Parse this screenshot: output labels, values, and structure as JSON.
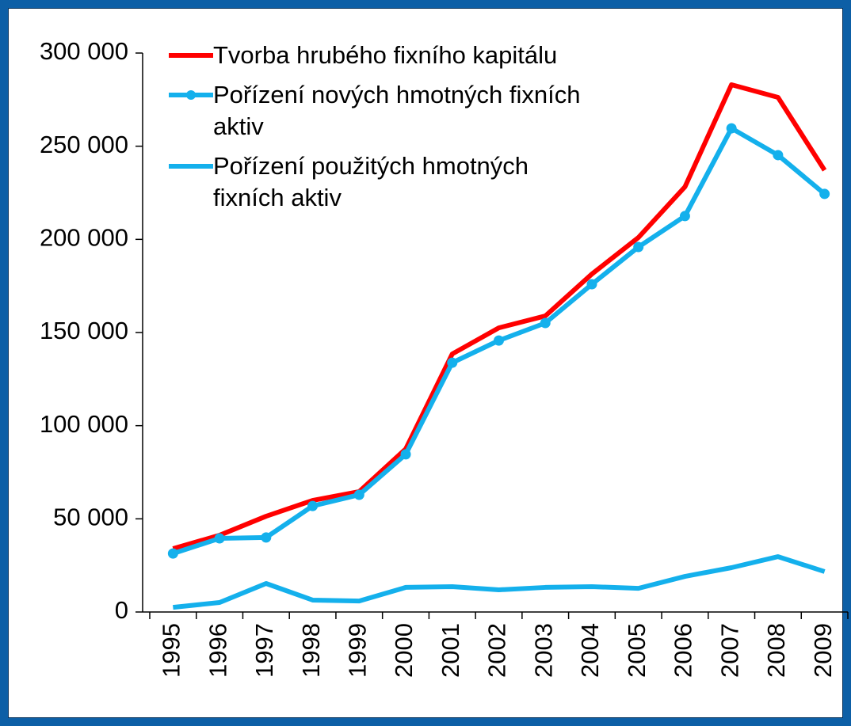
{
  "chart_data": {
    "type": "line",
    "categories": [
      "1995",
      "1996",
      "1997",
      "1998",
      "1999",
      "2000",
      "2001",
      "2002",
      "2003",
      "2004",
      "2005",
      "2006",
      "2007",
      "2008",
      "2009"
    ],
    "series": [
      {
        "name": "Tvorba hrubého fixního kapitálu",
        "color": "#ff0000",
        "marker": false,
        "values": [
          34000,
          41200,
          51400,
          59900,
          64600,
          87500,
          138500,
          152500,
          158900,
          181400,
          201000,
          228200,
          283000,
          276200,
          237100
        ]
      },
      {
        "name": "Pořízení nových hmotných fixních aktiv",
        "color": "#14b0ec",
        "marker": true,
        "values": [
          31400,
          39500,
          40000,
          56900,
          62900,
          84600,
          133800,
          145700,
          155100,
          175900,
          195900,
          212500,
          259600,
          245200,
          224400
        ]
      },
      {
        "name": "Pořízení použitých hmotných fixních aktiv",
        "color": "#14b0ec",
        "marker": false,
        "values": [
          2500,
          5100,
          15300,
          6400,
          5900,
          13200,
          13600,
          11900,
          13200,
          13600,
          12700,
          19100,
          23800,
          29700,
          21700
        ]
      }
    ],
    "ylim": [
      0,
      300000
    ],
    "yticks": [
      0,
      {
        "value": 50000,
        "label": "50 000"
      },
      {
        "value": 100000,
        "label": "100 000"
      },
      {
        "value": 150000,
        "label": "150 000"
      },
      {
        "value": 200000,
        "label": "200 000"
      },
      {
        "value": 250000,
        "label": "250 000"
      },
      {
        "value": 300000,
        "label": "300 000"
      }
    ],
    "grid": false,
    "legend": "top-left"
  }
}
